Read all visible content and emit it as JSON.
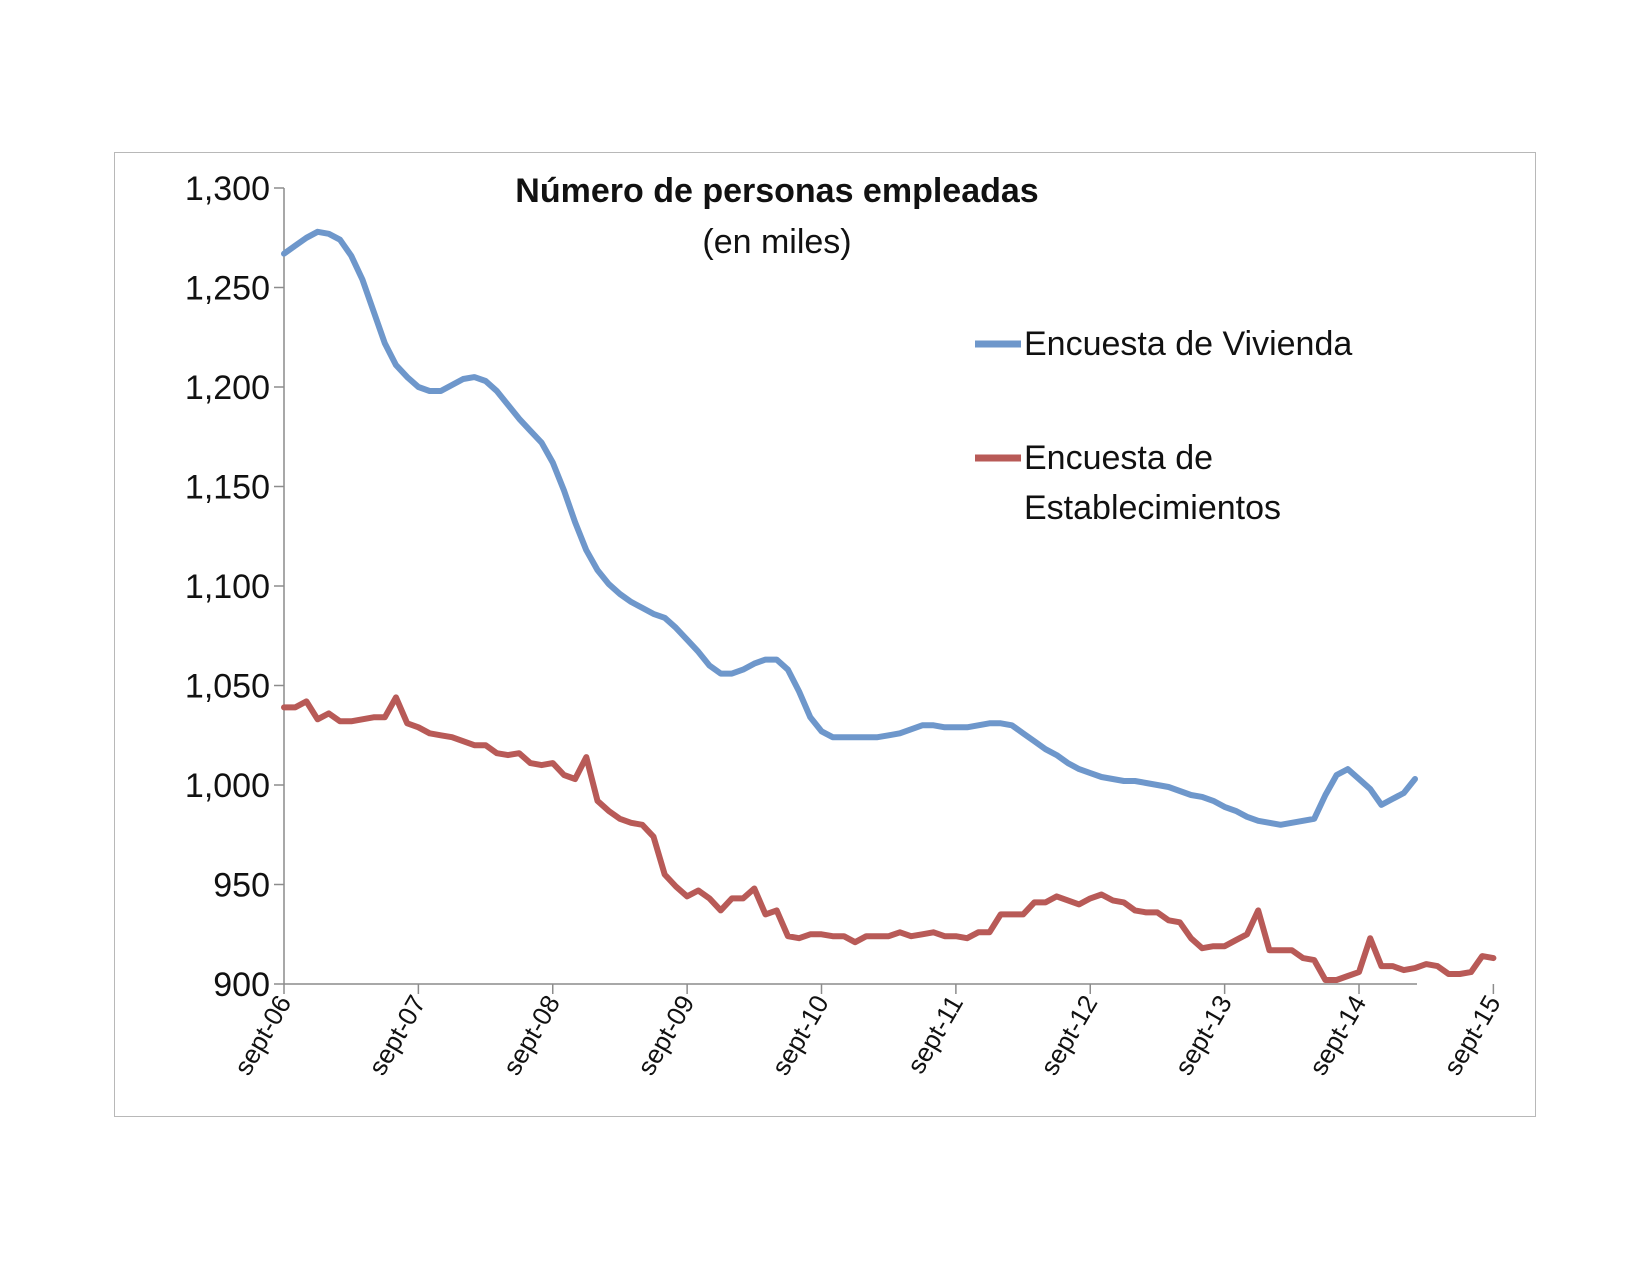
{
  "chart_data": {
    "type": "line",
    "title": "Número de personas empleadas",
    "subtitle": "(en miles)",
    "ylim": [
      900,
      1300
    ],
    "yticks": [
      "1,300",
      "1,250",
      "1,200",
      "1,150",
      "1,100",
      "1,050",
      "1,000",
      "950",
      "900"
    ],
    "ytick_values": [
      1300,
      1250,
      1200,
      1150,
      1100,
      1050,
      1000,
      950,
      900
    ],
    "xticks": [
      "sept-06",
      "sept-07",
      "sept-08",
      "sept-09",
      "sept-10",
      "sept-11",
      "sept-12",
      "sept-13",
      "sept-14",
      "sept-15"
    ],
    "xtick_positions": [
      0,
      12,
      24,
      36,
      48,
      60,
      72,
      84,
      96,
      108
    ],
    "grid": false,
    "legend_position": "right",
    "colors": {
      "series1": "#6E97CB",
      "series2": "#B85A57",
      "axis": "#8c8c8c"
    },
    "series": [
      {
        "name": "Encuesta de Vivienda",
        "values": [
          1267,
          1271,
          1275,
          1278,
          1277,
          1274,
          1266,
          1254,
          1238,
          1222,
          1211,
          1205,
          1200,
          1198,
          1198,
          1201,
          1204,
          1205,
          1203,
          1198,
          1191,
          1184,
          1178,
          1172,
          1162,
          1148,
          1132,
          1118,
          1108,
          1101,
          1096,
          1092,
          1089,
          1086,
          1084,
          1079,
          1073,
          1067,
          1060,
          1056,
          1056,
          1058,
          1061,
          1063,
          1063,
          1058,
          1047,
          1034,
          1027,
          1024,
          1024,
          1024,
          1024,
          1024,
          1025,
          1026,
          1028,
          1030,
          1030,
          1029,
          1029,
          1029,
          1030,
          1031,
          1031,
          1030,
          1026,
          1022,
          1018,
          1015,
          1011,
          1008,
          1006,
          1004,
          1003,
          1002,
          1002,
          1001,
          1000,
          999,
          997,
          995,
          994,
          992,
          989,
          987,
          984,
          982,
          981,
          980,
          981,
          982,
          983,
          995,
          1005,
          1008,
          1003,
          998,
          990,
          993,
          996,
          1003
        ]
      },
      {
        "name": "Encuesta de Establecimientos",
        "values": [
          1039,
          1039,
          1042,
          1033,
          1036,
          1032,
          1032,
          1033,
          1034,
          1034,
          1044,
          1031,
          1029,
          1026,
          1025,
          1024,
          1022,
          1020,
          1020,
          1016,
          1015,
          1016,
          1011,
          1010,
          1011,
          1005,
          1003,
          1014,
          992,
          987,
          983,
          981,
          980,
          974,
          955,
          949,
          944,
          947,
          943,
          937,
          943,
          943,
          948,
          935,
          937,
          924,
          923,
          925,
          925,
          924,
          924,
          921,
          924,
          924,
          924,
          926,
          924,
          925,
          926,
          924,
          924,
          923,
          926,
          926,
          935,
          935,
          935,
          941,
          941,
          944,
          942,
          940,
          943,
          945,
          942,
          941,
          937,
          936,
          936,
          932,
          931,
          923,
          918,
          919,
          919,
          922,
          925,
          937,
          917,
          917,
          917,
          913,
          912,
          902,
          902,
          904,
          906,
          923,
          909,
          909,
          907,
          908,
          910,
          909,
          905,
          905,
          906,
          914,
          913
        ]
      }
    ]
  }
}
